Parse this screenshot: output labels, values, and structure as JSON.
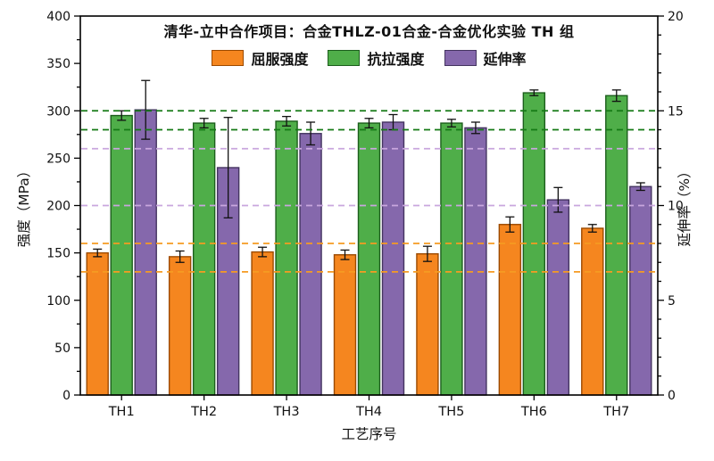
{
  "chart_data": {
    "type": "bar",
    "title": "清华-立中合作项目：合金THLZ-01合金-合金优化实验 TH 组",
    "xlabel": "工艺序号",
    "ylabel_left": "强度（MPa）",
    "ylabel_right": "延伸率（%）",
    "categories": [
      "TH1",
      "TH2",
      "TH3",
      "TH4",
      "TH5",
      "TH6",
      "TH7"
    ],
    "series": [
      {
        "name": "屈服强度",
        "axis": "left",
        "color": "#F5861F",
        "border": "#9C4A00",
        "values": [
          150,
          146,
          151,
          148,
          149,
          180,
          176
        ],
        "errors": [
          4,
          6,
          5,
          5,
          8,
          8,
          4
        ]
      },
      {
        "name": "抗拉强度",
        "axis": "left",
        "color": "#4FAE49",
        "border": "#1C5E1C",
        "values": [
          295,
          287,
          289,
          287,
          287,
          319,
          316
        ],
        "errors": [
          5,
          5,
          5,
          5,
          4,
          3,
          6
        ]
      },
      {
        "name": "延伸率",
        "axis": "right",
        "color": "#8568AC",
        "border": "#443460",
        "values": [
          15.05,
          12.0,
          13.8,
          14.4,
          14.1,
          10.3,
          11.0
        ],
        "errors": [
          1.55,
          2.65,
          0.6,
          0.4,
          0.3,
          0.65,
          0.2
        ]
      }
    ],
    "left_axis": {
      "min": 0,
      "max": 400,
      "major": 50,
      "minor": 25
    },
    "right_axis": {
      "min": 0,
      "max": 20,
      "major": 5,
      "minor": 1
    },
    "reference_lines": [
      {
        "value": 300,
        "axis": "left",
        "color": "#157A15"
      },
      {
        "value": 280,
        "axis": "left",
        "color": "#157A15"
      },
      {
        "value": 13,
        "axis": "right",
        "color": "#C9A6DE"
      },
      {
        "value": 10,
        "axis": "right",
        "color": "#C9A6DE"
      },
      {
        "value": 160,
        "axis": "left",
        "color": "#F59B22"
      },
      {
        "value": 130,
        "axis": "left",
        "color": "#F59B22"
      }
    ],
    "error_bar_color": "#111111"
  }
}
